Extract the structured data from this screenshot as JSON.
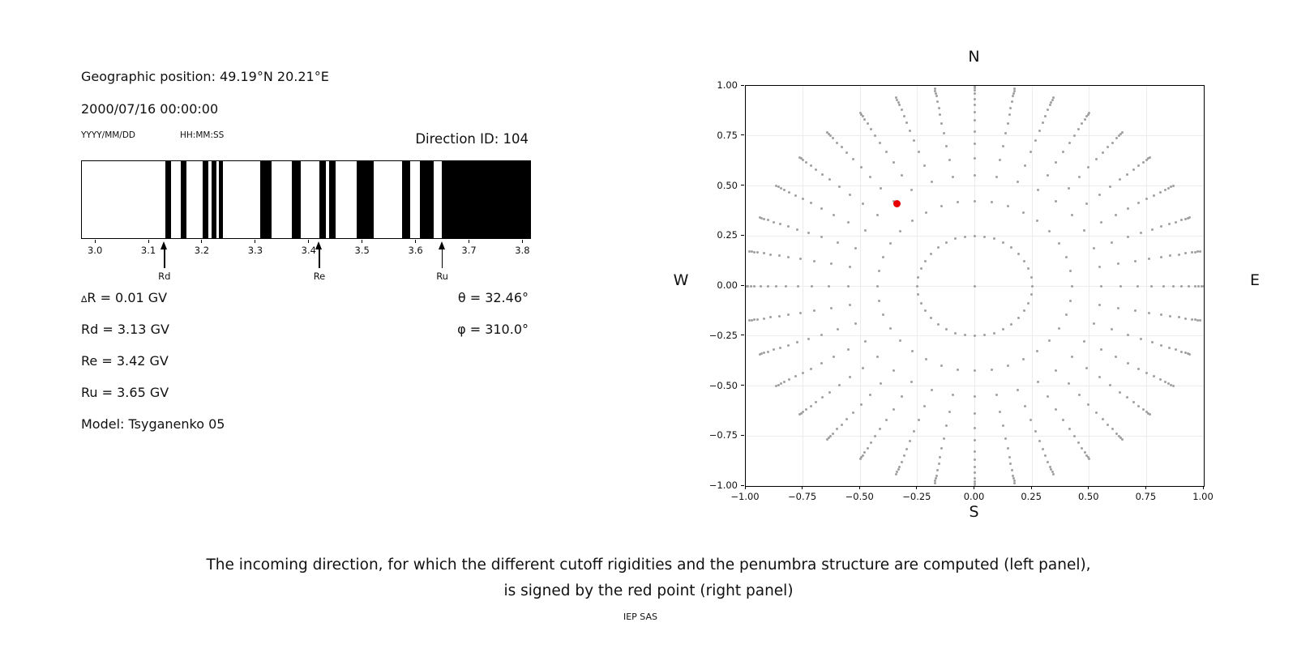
{
  "header": {
    "geo_position": "Geographic position: 49.19°N 20.21°E",
    "datetime": "2000/07/16 00:00:00",
    "date_format": "YYYY/MM/DD",
    "time_format": "HH:MM:SS",
    "direction_id": "Direction ID: 104"
  },
  "stats": {
    "delta_symbol": "∆",
    "delta_rest": "R = 0.01 GV",
    "rd": "Rd = 3.13 GV",
    "re": "Re = 3.42 GV",
    "ru": "Ru = 3.65 GV",
    "model": "Model: Tsyganenko 05",
    "theta": "θ = 32.46°",
    "phi": "φ = 310.0°"
  },
  "caption": {
    "line1": "The incoming direction, for which the different cutoff rigidities and the penumbra structure are computed (left panel),",
    "line2": "is signed by the red point (right panel)",
    "credit": "IEP SAS"
  },
  "chart_data": [
    {
      "id": "penumbra-barcode",
      "type": "bar",
      "title": "",
      "xlabel": "",
      "ylabel": "",
      "xlim": [
        2.974,
        3.816
      ],
      "x_ticks": [
        3.0,
        3.1,
        3.2,
        3.3,
        3.4,
        3.5,
        3.6,
        3.7,
        3.8
      ],
      "x_tick_labels": [
        "3.0",
        "3.1",
        "3.2",
        "3.3",
        "3.4",
        "3.5",
        "3.6",
        "3.7",
        "3.8"
      ],
      "band_color": "#000000",
      "background": "#ffffff",
      "forbidden_bands_gv": [
        [
          3.13,
          3.141
        ],
        [
          3.159,
          3.17
        ],
        [
          3.2,
          3.21
        ],
        [
          3.217,
          3.226
        ],
        [
          3.231,
          3.238
        ],
        [
          3.308,
          3.329
        ],
        [
          3.367,
          3.384
        ],
        [
          3.419,
          3.431
        ],
        [
          3.436,
          3.449
        ],
        [
          3.488,
          3.52
        ],
        [
          3.574,
          3.589
        ],
        [
          3.606,
          3.632
        ],
        [
          3.647,
          3.816
        ]
      ],
      "markers": [
        {
          "label": "Rd",
          "value_gv": 3.13
        },
        {
          "label": "Re",
          "value_gv": 3.42
        },
        {
          "label": "Ru",
          "value_gv": 3.65
        }
      ]
    },
    {
      "id": "direction-map",
      "type": "scatter",
      "title": "",
      "xlim": [
        -1,
        1
      ],
      "ylim": [
        -1,
        1
      ],
      "tick_values": [
        -1,
        -0.75,
        -0.5,
        -0.25,
        0,
        0.25,
        0.5,
        0.75,
        1
      ],
      "x_tick_labels": [
        "−1.00",
        "−0.75",
        "−0.50",
        "−0.25",
        "0.00",
        "0.25",
        "0.50",
        "0.75",
        "1.00"
      ],
      "y_tick_labels": [
        "−1.00",
        "−0.75",
        "−0.50",
        "−0.25",
        "0.00",
        "0.25",
        "0.50",
        "0.75",
        "1.00"
      ],
      "grid": true,
      "grid_color": "#ececec",
      "legend_position": "none",
      "compass": {
        "top": "N",
        "right": "E",
        "bottom": "S",
        "left": "W"
      },
      "series": [
        {
          "name": "direction-grid",
          "marker_color": "#a0a0a0",
          "marker_size_px": 3,
          "azimuth_start_deg": 0,
          "azimuth_step_deg": 10,
          "azimuth_count": 36,
          "radii": [
            0.25,
            0.425,
            0.553,
            0.638,
            0.711,
            0.773,
            0.826,
            0.868,
            0.904,
            0.935,
            0.962,
            0.978,
            0.99,
            1.0
          ],
          "center_point": true
        },
        {
          "name": "selected-direction",
          "marker_color": "#e60000",
          "marker_size_px": 9,
          "points": [
            {
              "x": -0.34,
              "y": 0.41
            }
          ],
          "theta_deg": 32.46,
          "phi_deg": 310.0
        }
      ]
    }
  ]
}
